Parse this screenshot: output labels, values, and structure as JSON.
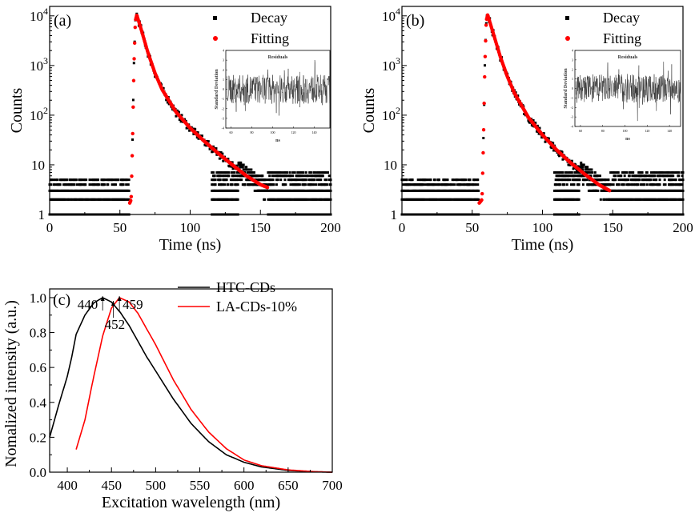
{
  "chart_data": [
    {
      "type": "scatter",
      "panel_label": "(a)",
      "xlabel": "Time (ns)",
      "ylabel": "Counts",
      "xlim": [
        0,
        200
      ],
      "ylim": [
        1,
        15500
      ],
      "yscale": "log",
      "xticks": [
        "0",
        "50",
        "100",
        "150",
        "200"
      ],
      "yticks": [
        {
          "base": "1",
          "exp": ""
        },
        {
          "base": "10",
          "exp": ""
        },
        {
          "base": "10",
          "exp": "2"
        },
        {
          "base": "10",
          "exp": "3"
        },
        {
          "base": "10",
          "exp": "4"
        }
      ],
      "legend": {
        "placement": "top-right",
        "entries": [
          "Decay",
          "Fitting"
        ]
      },
      "colors": {
        "decay": "#000000",
        "fitting": "#ff0000"
      },
      "fitting": [
        [
          57,
          1.7
        ],
        [
          58,
          2
        ],
        [
          59,
          30
        ],
        [
          60,
          1000
        ],
        [
          61,
          8000
        ],
        [
          62,
          10500
        ],
        [
          65,
          5500
        ],
        [
          70,
          1800
        ],
        [
          75,
          700
        ],
        [
          80,
          330
        ],
        [
          90,
          115
        ],
        [
          100,
          55
        ],
        [
          110,
          30
        ],
        [
          120,
          17
        ],
        [
          130,
          10
        ],
        [
          140,
          6
        ],
        [
          150,
          4
        ],
        [
          155,
          3.5
        ]
      ],
      "inset": {
        "title": "Residuals",
        "xlabel": "ns",
        "ylabel": "Standard Deviation",
        "xlim": [
          55,
          155
        ],
        "ylim": [
          -4,
          4
        ],
        "xticks": [
          "60",
          "80",
          "100",
          "120",
          "140"
        ],
        "yticks": [
          "-4",
          "-3",
          "-2",
          "-1",
          "0",
          "1",
          "2",
          "3",
          "4"
        ]
      }
    },
    {
      "type": "scatter",
      "panel_label": "(b)",
      "xlabel": "Time (ns)",
      "ylabel": "Counts",
      "xlim": [
        0,
        200
      ],
      "ylim": [
        1,
        15500
      ],
      "yscale": "log",
      "xticks": [
        "0",
        "50",
        "100",
        "150",
        "200"
      ],
      "yticks": [
        {
          "base": "1",
          "exp": ""
        },
        {
          "base": "10",
          "exp": ""
        },
        {
          "base": "10",
          "exp": "2"
        },
        {
          "base": "10",
          "exp": "3"
        },
        {
          "base": "10",
          "exp": "4"
        }
      ],
      "legend": {
        "placement": "top-right",
        "entries": [
          "Decay",
          "Fitting"
        ]
      },
      "colors": {
        "decay": "#000000",
        "fitting": "#ff0000"
      },
      "fitting": [
        [
          55,
          1.7
        ],
        [
          57,
          2
        ],
        [
          58,
          30
        ],
        [
          59,
          1000
        ],
        [
          60,
          8000
        ],
        [
          61,
          10500
        ],
        [
          64,
          5500
        ],
        [
          70,
          1500
        ],
        [
          75,
          600
        ],
        [
          80,
          280
        ],
        [
          90,
          90
        ],
        [
          100,
          40
        ],
        [
          110,
          20
        ],
        [
          120,
          11
        ],
        [
          130,
          6.5
        ],
        [
          140,
          4
        ],
        [
          148,
          3
        ]
      ],
      "inset": {
        "title": "Residuals",
        "xlabel": "ns",
        "ylabel": "Standard Deviation",
        "xlim": [
          55,
          150
        ],
        "ylim": [
          -4,
          4
        ],
        "xticks": [
          "60",
          "80",
          "100",
          "120",
          "140"
        ],
        "yticks": [
          "-4",
          "-3",
          "-2",
          "-1",
          "0",
          "1",
          "2",
          "3",
          "4"
        ]
      }
    },
    {
      "type": "line",
      "panel_label": "(c)",
      "xlabel": "Excitation wavelength (nm)",
      "ylabel": "Nomalized intensity (a.u.)",
      "xlim": [
        380,
        700
      ],
      "ylim": [
        0,
        1.05
      ],
      "xticks": [
        "400",
        "450",
        "500",
        "550",
        "600",
        "650",
        "700"
      ],
      "yticks": [
        "0.0",
        "0.2",
        "0.4",
        "0.6",
        "0.8",
        "1.0"
      ],
      "legend": {
        "placement": "top-right"
      },
      "series": [
        {
          "name": "HTC-CDs",
          "color": "#000000",
          "points": [
            [
              380,
              0.2
            ],
            [
              390,
              0.38
            ],
            [
              400,
              0.55
            ],
            [
              405,
              0.66
            ],
            [
              410,
              0.79
            ],
            [
              420,
              0.9
            ],
            [
              430,
              0.97
            ],
            [
              440,
              1.0
            ],
            [
              450,
              0.975
            ],
            [
              460,
              0.915
            ],
            [
              470,
              0.84
            ],
            [
              480,
              0.75
            ],
            [
              490,
              0.66
            ],
            [
              500,
              0.58
            ],
            [
              520,
              0.42
            ],
            [
              540,
              0.28
            ],
            [
              560,
              0.175
            ],
            [
              580,
              0.1
            ],
            [
              600,
              0.057
            ],
            [
              620,
              0.03
            ],
            [
              650,
              0.01
            ],
            [
              680,
              0.002
            ],
            [
              700,
              0
            ]
          ]
        },
        {
          "name": "LA-CDs-10%",
          "color": "#ff0000",
          "points": [
            [
              410,
              0.13
            ],
            [
              420,
              0.3
            ],
            [
              430,
              0.55
            ],
            [
              440,
              0.78
            ],
            [
              450,
              0.94
            ],
            [
              459,
              1.0
            ],
            [
              470,
              0.975
            ],
            [
              480,
              0.91
            ],
            [
              490,
              0.82
            ],
            [
              500,
              0.73
            ],
            [
              520,
              0.53
            ],
            [
              540,
              0.36
            ],
            [
              560,
              0.23
            ],
            [
              580,
              0.135
            ],
            [
              600,
              0.07
            ],
            [
              620,
              0.037
            ],
            [
              650,
              0.013
            ],
            [
              680,
              0.003
            ],
            [
              700,
              0
            ]
          ]
        }
      ],
      "annotations": [
        {
          "text": "440",
          "x": 440
        },
        {
          "text": "452",
          "x": 452
        },
        {
          "text": "459",
          "x": 459
        }
      ]
    }
  ]
}
